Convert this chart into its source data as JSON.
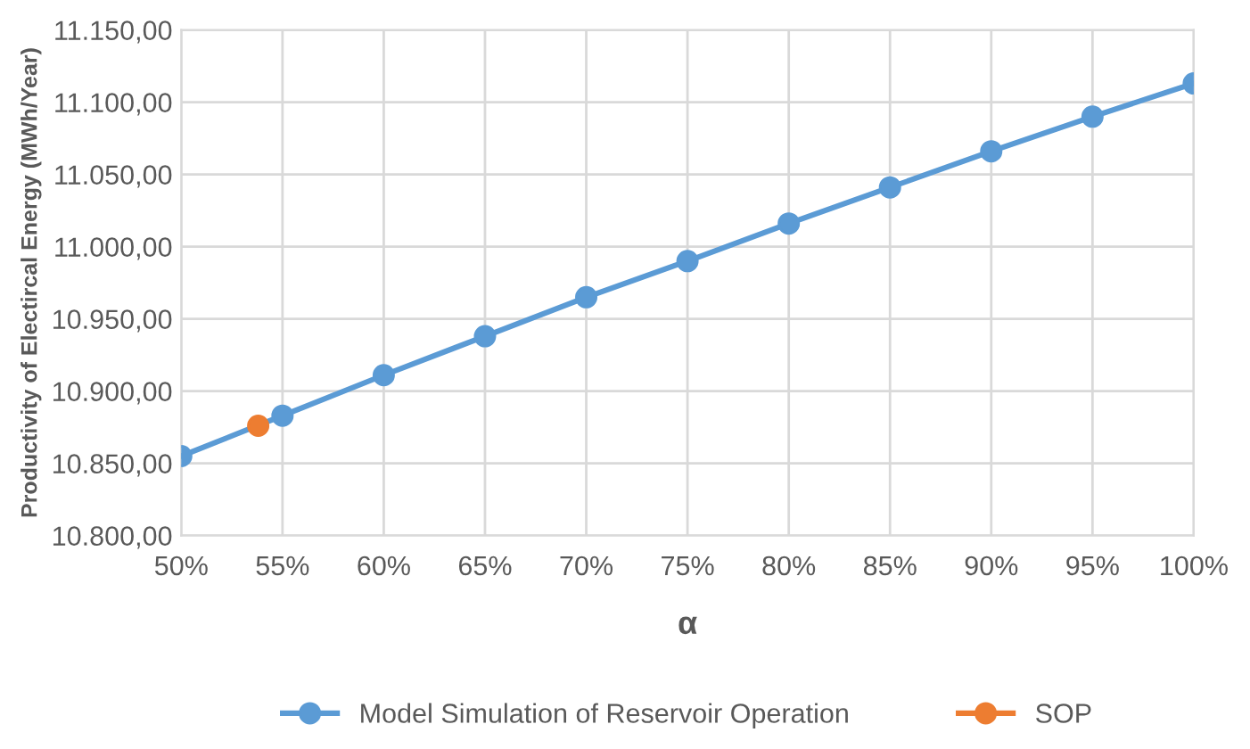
{
  "chart_data": {
    "type": "line",
    "xlabel": "α",
    "ylabel": "Productivity of Electircal Energy (MWh/Year)",
    "series": [
      {
        "name": "Model Simulation of Reservoir Operation",
        "color": "#5b9bd5",
        "x": [
          50,
          55,
          60,
          65,
          70,
          75,
          80,
          85,
          90,
          95,
          100
        ],
        "values": [
          10855,
          10883,
          10911,
          10938,
          10965,
          10990,
          11016,
          11041,
          11066,
          11090,
          11113
        ]
      },
      {
        "name": "SOP",
        "color": "#ed7d31",
        "x": [
          53.8
        ],
        "values": [
          10876
        ]
      }
    ],
    "xlim": [
      50,
      100
    ],
    "xticks": [
      {
        "value": 50,
        "label": "50%"
      },
      {
        "value": 55,
        "label": "55%"
      },
      {
        "value": 60,
        "label": "60%"
      },
      {
        "value": 65,
        "label": "65%"
      },
      {
        "value": 70,
        "label": "70%"
      },
      {
        "value": 75,
        "label": "75%"
      },
      {
        "value": 80,
        "label": "80%"
      },
      {
        "value": 85,
        "label": "85%"
      },
      {
        "value": 90,
        "label": "90%"
      },
      {
        "value": 95,
        "label": "95%"
      },
      {
        "value": 100,
        "label": "100%"
      }
    ],
    "ylim": [
      10800,
      11150
    ],
    "yticks": [
      {
        "value": 10800,
        "label": "10.800,00"
      },
      {
        "value": 10850,
        "label": "10.850,00"
      },
      {
        "value": 10900,
        "label": "10.900,00"
      },
      {
        "value": 10950,
        "label": "10.950,00"
      },
      {
        "value": 11000,
        "label": "11.000,00"
      },
      {
        "value": 11050,
        "label": "11.050,00"
      },
      {
        "value": 11100,
        "label": "11.100,00"
      },
      {
        "value": 11150,
        "label": "11.150,00"
      }
    ],
    "grid": true,
    "legend": "bottom",
    "marker": "circle",
    "line_style": "solid"
  }
}
